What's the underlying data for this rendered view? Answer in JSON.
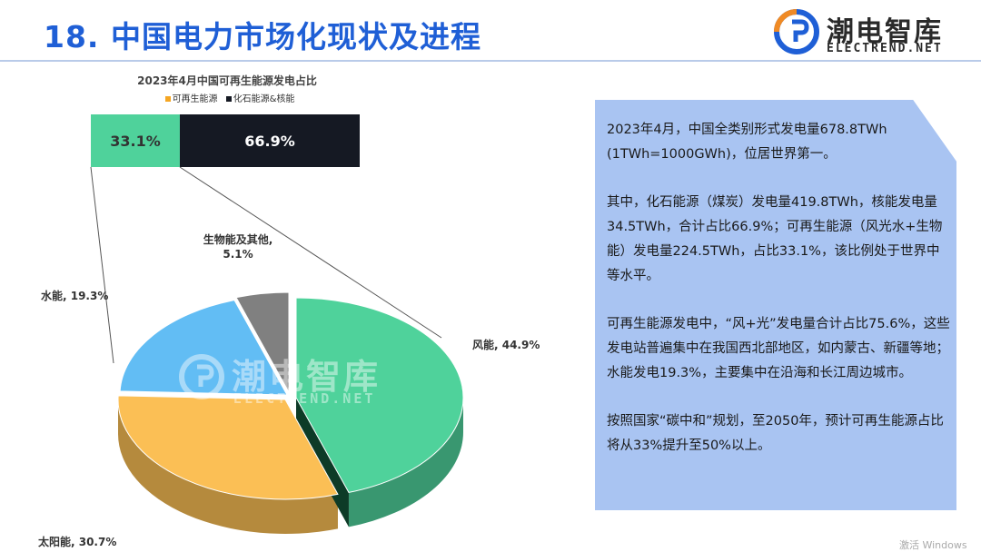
{
  "slide": {
    "title": "18. 中国电力市场化现状及进程",
    "logo_cn": "潮电智库",
    "logo_en": "ELECTREND.NET",
    "watermark_cn": "潮电智库",
    "watermark_en": "ELECTREND.NET",
    "system_text": "激活 Windows"
  },
  "colors": {
    "title": "#1f5fd6",
    "renewable": "#4fd29b",
    "fossil": "#151923",
    "wind": "#4fd29b",
    "solar": "#fbbf55",
    "hydro": "#62bdf4",
    "bio": "#808080",
    "panel": "#a9c4f2"
  },
  "chart_data": [
    {
      "type": "bar",
      "title": "2023年4月中国可再生能源发电占比",
      "series": [
        {
          "name": "可再生能源",
          "values": [
            33.1
          ],
          "label": "33.1%"
        },
        {
          "name": "化石能源&核能",
          "values": [
            66.9
          ],
          "label": "66.9%"
        }
      ],
      "stacked": true,
      "orientation": "horizontal",
      "legend": "top"
    },
    {
      "type": "pie",
      "style": "3d-exploded",
      "labels": [
        "风能",
        "太阳能",
        "水能",
        "生物能及其他"
      ],
      "values": [
        44.9,
        30.7,
        19.3,
        5.1
      ],
      "data_labels": [
        "风能, 44.9%",
        "太阳能, 30.7%",
        "水能, 19.3%",
        "生物能及其他, 5.1%"
      ]
    }
  ],
  "panel": {
    "paragraphs": [
      "2023年4月，中国全类别形式发电量678.8TWh (1TWh=1000GWh)，位居世界第一。",
      "其中，化石能源（煤炭）发电量419.8TWh，核能发电量34.5TWh，合计占比66.9%；可再生能源（风光水+生物能）发电量224.5TWh，占比33.1%，该比例处于世界中等水平。",
      "可再生能源发电中，“风+光”发电量合计占比75.6%，这些发电站普遍集中在我国西北部地区，如内蒙古、新疆等地；水能发电19.3%，主要集中在沿海和长江周边城市。",
      "按照国家“碳中和”规划，至2050年，预计可再生能源占比将从33%提升至50%以上。"
    ]
  }
}
